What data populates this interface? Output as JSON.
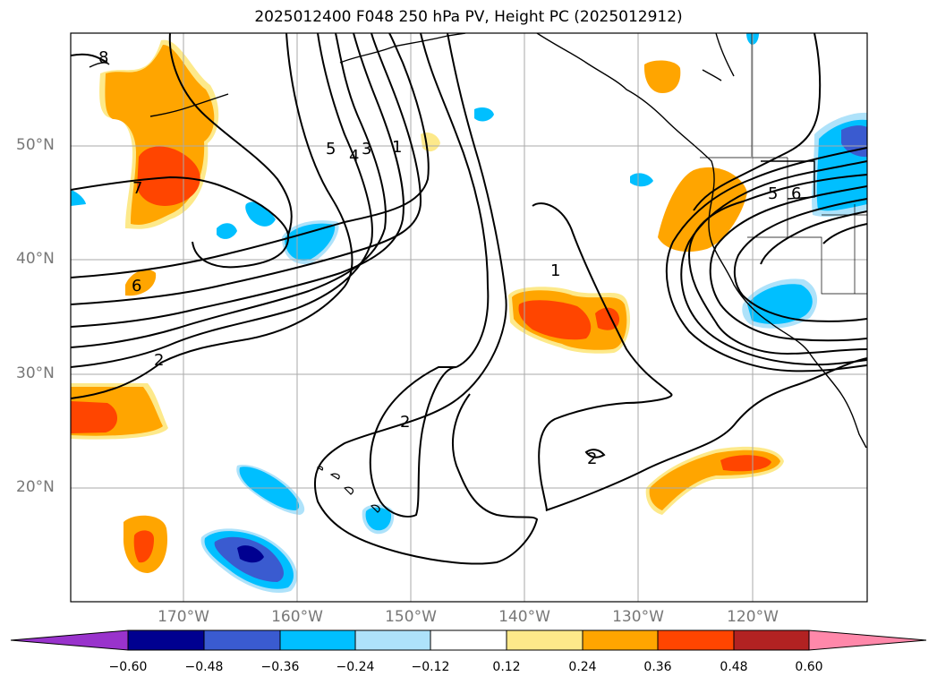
{
  "title": "2025012400 F048 250 hPa PV, Height PC (2025012912)",
  "lat_labels": [
    "50°N",
    "40°N",
    "30°N",
    "20°N"
  ],
  "lon_labels": [
    "170°W",
    "160°W",
    "150°W",
    "140°W",
    "130°W",
    "120°W"
  ],
  "contour_labels": [
    "1",
    "1",
    "2",
    "2",
    "2",
    "3",
    "4",
    "5",
    "5",
    "6",
    "6",
    "7",
    "8"
  ],
  "colorbar": {
    "ticks": [
      "−0.60",
      "−0.48",
      "−0.36",
      "−0.24",
      "−0.12",
      "0.12",
      "0.24",
      "0.36",
      "0.48",
      "0.60"
    ],
    "colors": [
      "#9933cc",
      "#000090",
      "#3a5bd0",
      "#00bfff",
      "#aee2fa",
      "#ffffff",
      "#fde98a",
      "#ffa500",
      "#ff4500",
      "#b22222",
      "#ff88aa"
    ]
  },
  "colors": {
    "orange": "#ffa500",
    "red": "#ff4500",
    "yellow": "#fde98a",
    "blue": "#00bfff",
    "lightblue": "#aee2fa",
    "medblue": "#3a5bd0",
    "navy": "#000090"
  }
}
